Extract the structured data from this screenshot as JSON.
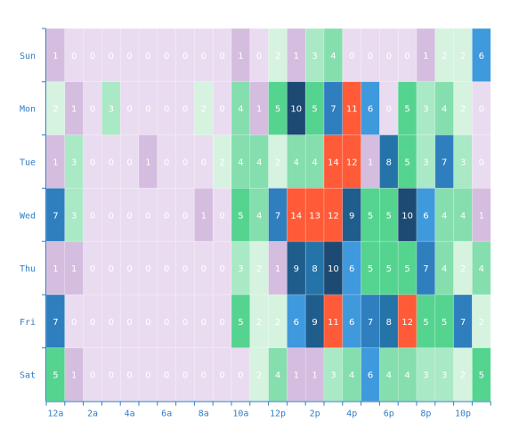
{
  "chart_data": {
    "type": "heatmap",
    "title": "",
    "xlabel": "",
    "ylabel": "",
    "x_tick_labels": [
      "12a",
      "2a",
      "4a",
      "6a",
      "8a",
      "10a",
      "12p",
      "2p",
      "4p",
      "6p",
      "8p",
      "10p"
    ],
    "hours": [
      "12a",
      "1a",
      "2a",
      "3a",
      "4a",
      "5a",
      "6a",
      "7a",
      "8a",
      "9a",
      "10a",
      "11a",
      "12p",
      "1p",
      "2p",
      "3p",
      "4p",
      "5p",
      "6p",
      "7p",
      "8p",
      "9p",
      "10p",
      "11p"
    ],
    "days": [
      "Sun",
      "Mon",
      "Tue",
      "Wed",
      "Thu",
      "Fri",
      "Sat"
    ],
    "values": [
      [
        1,
        0,
        0,
        0,
        0,
        0,
        0,
        0,
        0,
        0,
        1,
        0,
        2,
        1,
        3,
        4,
        0,
        0,
        0,
        0,
        1,
        2,
        2,
        6
      ],
      [
        2,
        1,
        0,
        3,
        0,
        0,
        0,
        0,
        2,
        0,
        4,
        1,
        5,
        10,
        5,
        7,
        11,
        6,
        0,
        5,
        3,
        4,
        2,
        0
      ],
      [
        1,
        3,
        0,
        0,
        0,
        1,
        0,
        0,
        0,
        2,
        4,
        4,
        2,
        4,
        4,
        14,
        12,
        1,
        8,
        5,
        3,
        7,
        3,
        0
      ],
      [
        7,
        3,
        0,
        0,
        0,
        0,
        0,
        0,
        1,
        0,
        5,
        4,
        7,
        14,
        13,
        12,
        9,
        5,
        5,
        10,
        6,
        4,
        4,
        1
      ],
      [
        1,
        1,
        0,
        0,
        0,
        0,
        0,
        0,
        0,
        0,
        3,
        2,
        1,
        9,
        8,
        10,
        6,
        5,
        5,
        5,
        7,
        4,
        2,
        4
      ],
      [
        7,
        0,
        0,
        0,
        0,
        0,
        0,
        0,
        0,
        0,
        5,
        2,
        2,
        6,
        9,
        11,
        6,
        7,
        8,
        12,
        5,
        5,
        7,
        2
      ],
      [
        5,
        1,
        0,
        0,
        0,
        0,
        0,
        0,
        0,
        0,
        0,
        2,
        4,
        1,
        1,
        3,
        4,
        6,
        4,
        4,
        3,
        3,
        2,
        5
      ]
    ],
    "grid": true
  }
}
